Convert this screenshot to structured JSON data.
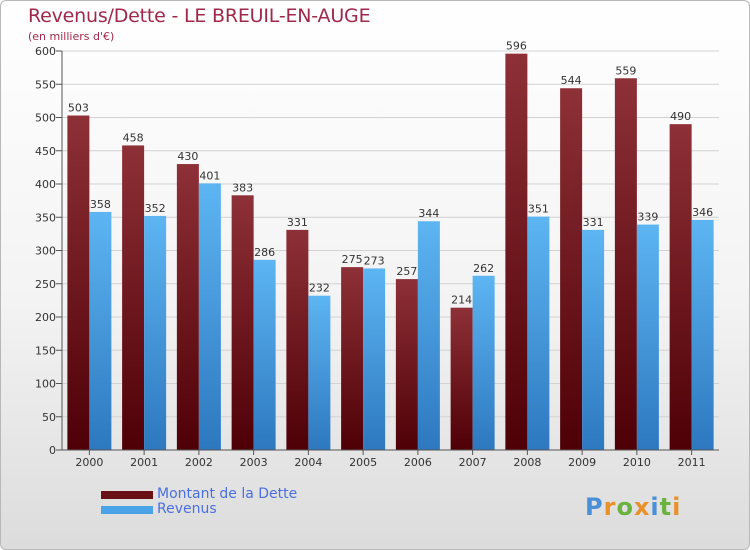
{
  "title": "Revenus/Dette - LE BREUIL-EN-AUGE",
  "subtitle": "(en milliers d'€)",
  "legend": [
    {
      "label": "Montant de la Dette",
      "color": "#6b0f16"
    },
    {
      "label": "Revenus",
      "color": "#4aa3e6"
    }
  ],
  "brand": {
    "text": "Proxiti",
    "colors": [
      "#4a90d9",
      "#e8902a",
      "#6bb33e",
      "#e8902a",
      "#4a90d9",
      "#6bb33e",
      "#e8902a"
    ]
  },
  "chart_data": {
    "type": "bar",
    "title": "Revenus/Dette - LE BREUIL-EN-AUGE",
    "ylabel": "(en milliers d'€)",
    "xlabel": "",
    "categories": [
      "2000",
      "2001",
      "2002",
      "2003",
      "2004",
      "2005",
      "2006",
      "2007",
      "2008",
      "2009",
      "2010",
      "2011"
    ],
    "series": [
      {
        "name": "Montant de la Dette",
        "color": "#6b0f16",
        "values": [
          503,
          458,
          430,
          383,
          331,
          275,
          257,
          214,
          596,
          544,
          559,
          490
        ]
      },
      {
        "name": "Revenus",
        "color": "#4aa3e6",
        "values": [
          358,
          352,
          401,
          286,
          232,
          273,
          344,
          262,
          351,
          331,
          339,
          346
        ]
      }
    ],
    "ylim": [
      0,
      600
    ],
    "yticks": [
      0,
      50,
      100,
      150,
      200,
      250,
      300,
      350,
      400,
      450,
      500,
      550,
      600
    ],
    "grid": true,
    "legend_position": "bottom-left"
  }
}
